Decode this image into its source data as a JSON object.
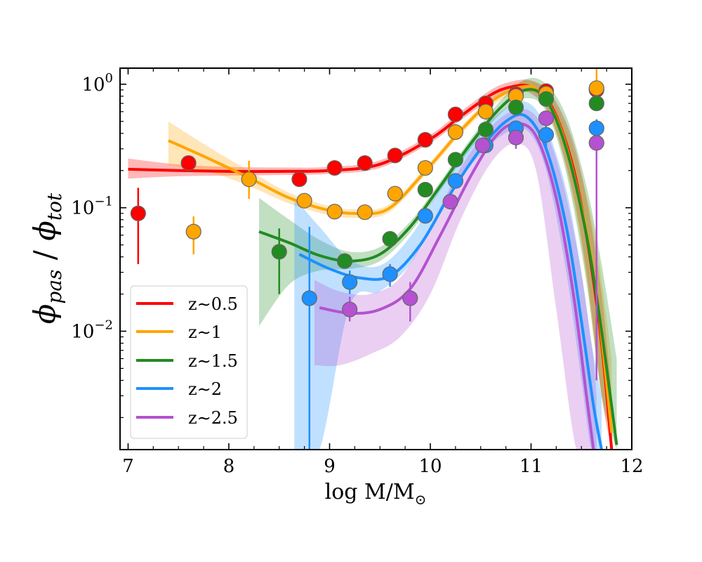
{
  "chart_data": {
    "type": "scatter",
    "title": "",
    "xlabel": "log M/M",
    "xlabel_sub": "⊙",
    "ylabel_main": "ϕ",
    "ylabel_sub1": "pas",
    "ylabel_slash": " / ",
    "ylabel_main2": "ϕ",
    "ylabel_sub2": "tot",
    "xlim": [
      6.92,
      12.0
    ],
    "ylim": [
      0.0011,
      1.35
    ],
    "yscale": "log",
    "x_ticks": [
      {
        "value": 7,
        "label": "7"
      },
      {
        "value": 8,
        "label": "8"
      },
      {
        "value": 9,
        "label": "9"
      },
      {
        "value": 10,
        "label": "10"
      },
      {
        "value": 11,
        "label": "11"
      },
      {
        "value": 12,
        "label": "12"
      }
    ],
    "y_ticks": [
      {
        "value": 1,
        "base": "10",
        "exp": "0"
      },
      {
        "value": 0.1,
        "base": "10",
        "exp": "−1"
      },
      {
        "value": 0.01,
        "base": "10",
        "exp": "−2"
      }
    ],
    "legend_position": "lower-left",
    "series": [
      {
        "name": "z~0.5",
        "label": "z∼0.5",
        "color": "#ff0000",
        "points": [
          {
            "x": 7.1,
            "y": 0.09,
            "lo": 0.035,
            "hi": 0.145
          },
          {
            "x": 7.6,
            "y": 0.23
          },
          {
            "x": 8.7,
            "y": 0.17
          },
          {
            "x": 9.05,
            "y": 0.21
          },
          {
            "x": 9.35,
            "y": 0.23
          },
          {
            "x": 9.65,
            "y": 0.265
          },
          {
            "x": 9.95,
            "y": 0.355
          },
          {
            "x": 10.25,
            "y": 0.57
          },
          {
            "x": 10.55,
            "y": 0.7
          },
          {
            "x": 10.85,
            "y": 0.83
          },
          {
            "x": 11.15,
            "y": 0.88
          },
          {
            "x": 11.65,
            "y": 0.9,
            "lo": 0.78,
            "hi": 1.0
          }
        ],
        "fit": {
          "x": [
            7.0,
            7.5,
            8.0,
            8.5,
            9.0,
            9.5,
            10.0,
            10.3,
            10.6,
            10.8,
            11.0,
            11.2,
            11.4,
            11.55,
            11.7,
            11.8
          ],
          "y": [
            0.205,
            0.2,
            0.197,
            0.197,
            0.2,
            0.225,
            0.36,
            0.55,
            0.82,
            0.95,
            0.95,
            0.67,
            0.24,
            0.06,
            0.008,
            0.0011
          ]
        },
        "band": {
          "x": [
            7.0,
            7.5,
            8.0,
            8.5,
            9.0,
            9.5,
            10.0,
            10.3,
            10.6,
            10.8,
            11.0,
            11.2,
            11.4,
            11.55,
            11.7,
            11.8
          ],
          "lo": [
            0.172,
            0.18,
            0.182,
            0.184,
            0.188,
            0.21,
            0.335,
            0.51,
            0.75,
            0.86,
            0.84,
            0.53,
            0.15,
            0.03,
            0.003,
            0.0011
          ],
          "hi": [
            0.25,
            0.224,
            0.214,
            0.212,
            0.214,
            0.242,
            0.39,
            0.6,
            0.9,
            1.05,
            1.07,
            0.83,
            0.38,
            0.12,
            0.02,
            0.003
          ]
        }
      },
      {
        "name": "z~1",
        "label": "z∼1",
        "color": "#ffa500",
        "points": [
          {
            "x": 7.65,
            "y": 0.064,
            "lo": 0.042,
            "hi": 0.085
          },
          {
            "x": 8.2,
            "y": 0.17,
            "lo": 0.118,
            "hi": 0.24
          },
          {
            "x": 8.75,
            "y": 0.114
          },
          {
            "x": 9.05,
            "y": 0.093
          },
          {
            "x": 9.35,
            "y": 0.092
          },
          {
            "x": 9.65,
            "y": 0.13
          },
          {
            "x": 9.95,
            "y": 0.21
          },
          {
            "x": 10.25,
            "y": 0.41
          },
          {
            "x": 10.55,
            "y": 0.6
          },
          {
            "x": 10.85,
            "y": 0.8
          },
          {
            "x": 11.15,
            "y": 0.84
          },
          {
            "x": 11.65,
            "y": 0.93,
            "lo": 0.8,
            "hi": 1.35
          }
        ],
        "fit": {
          "x": [
            7.4,
            7.8,
            8.2,
            8.6,
            9.0,
            9.3,
            9.6,
            10.0,
            10.3,
            10.6,
            10.9,
            11.1,
            11.3,
            11.5,
            11.65,
            11.8
          ],
          "y": [
            0.35,
            0.25,
            0.175,
            0.12,
            0.095,
            0.09,
            0.1,
            0.22,
            0.42,
            0.72,
            0.95,
            0.85,
            0.42,
            0.1,
            0.02,
            0.0015
          ]
        },
        "band": {
          "x": [
            7.4,
            7.8,
            8.2,
            8.6,
            9.0,
            9.3,
            9.6,
            10.0,
            10.3,
            10.6,
            10.9,
            11.1,
            11.3,
            11.5,
            11.65,
            11.8
          ],
          "lo": [
            0.22,
            0.195,
            0.15,
            0.108,
            0.087,
            0.083,
            0.093,
            0.205,
            0.39,
            0.66,
            0.86,
            0.74,
            0.3,
            0.05,
            0.006,
            0.0011
          ],
          "hi": [
            0.5,
            0.31,
            0.2,
            0.132,
            0.103,
            0.097,
            0.108,
            0.235,
            0.45,
            0.78,
            1.05,
            0.97,
            0.55,
            0.18,
            0.05,
            0.006
          ]
        }
      },
      {
        "name": "z~1.5",
        "label": "z∼1.5",
        "color": "#228b22",
        "points": [
          {
            "x": 8.5,
            "y": 0.044,
            "lo": 0.02,
            "hi": 0.068
          },
          {
            "x": 9.15,
            "y": 0.037
          },
          {
            "x": 9.6,
            "y": 0.056
          },
          {
            "x": 9.95,
            "y": 0.14
          },
          {
            "x": 10.25,
            "y": 0.245
          },
          {
            "x": 10.55,
            "y": 0.43
          },
          {
            "x": 10.85,
            "y": 0.65
          },
          {
            "x": 11.15,
            "y": 0.76
          },
          {
            "x": 11.65,
            "y": 0.7
          }
        ],
        "fit": {
          "x": [
            8.3,
            8.6,
            8.9,
            9.2,
            9.5,
            9.8,
            10.1,
            10.4,
            10.7,
            10.95,
            11.15,
            11.35,
            11.55,
            11.7,
            11.85
          ],
          "y": [
            0.064,
            0.052,
            0.041,
            0.037,
            0.042,
            0.07,
            0.15,
            0.33,
            0.65,
            0.9,
            0.75,
            0.3,
            0.06,
            0.01,
            0.0012
          ]
        },
        "band": {
          "x": [
            8.3,
            8.6,
            8.9,
            9.2,
            9.5,
            9.8,
            10.1,
            10.4,
            10.7,
            10.95,
            11.15,
            11.35,
            11.55,
            11.7,
            11.85
          ],
          "lo": [
            0.011,
            0.024,
            0.031,
            0.032,
            0.037,
            0.063,
            0.138,
            0.3,
            0.58,
            0.77,
            0.6,
            0.19,
            0.025,
            0.003,
            0.0011
          ],
          "hi": [
            0.12,
            0.08,
            0.055,
            0.044,
            0.048,
            0.077,
            0.163,
            0.36,
            0.74,
            1.1,
            1.0,
            0.55,
            0.15,
            0.035,
            0.006
          ]
        }
      },
      {
        "name": "z~2",
        "label": "z∼2",
        "color": "#1e90ff",
        "points": [
          {
            "x": 8.8,
            "y": 0.0185,
            "lo": 0.0011,
            "hi": 0.07
          },
          {
            "x": 9.2,
            "y": 0.025,
            "lo": 0.02,
            "hi": 0.031
          },
          {
            "x": 9.6,
            "y": 0.029,
            "lo": 0.023,
            "hi": 0.035
          },
          {
            "x": 9.95,
            "y": 0.086
          },
          {
            "x": 10.25,
            "y": 0.165
          },
          {
            "x": 10.55,
            "y": 0.32
          },
          {
            "x": 10.85,
            "y": 0.44
          },
          {
            "x": 11.15,
            "y": 0.39,
            "lo": 0.31,
            "hi": 0.46
          },
          {
            "x": 11.65,
            "y": 0.44,
            "lo": 0.35,
            "hi": 0.52
          }
        ],
        "fit": {
          "x": [
            8.7,
            9.0,
            9.3,
            9.6,
            9.9,
            10.2,
            10.5,
            10.75,
            10.95,
            11.15,
            11.35,
            11.5,
            11.62,
            11.7
          ],
          "y": [
            0.042,
            0.032,
            0.027,
            0.028,
            0.05,
            0.13,
            0.3,
            0.5,
            0.55,
            0.3,
            0.07,
            0.012,
            0.0025,
            0.0011
          ]
        },
        "band": {
          "x": [
            8.65,
            8.9,
            9.2,
            9.5,
            9.8,
            10.1,
            10.4,
            10.7,
            10.95,
            11.15,
            11.35,
            11.5,
            11.6,
            11.7
          ],
          "lo": [
            0.0011,
            0.0011,
            0.016,
            0.021,
            0.035,
            0.095,
            0.22,
            0.38,
            0.43,
            0.2,
            0.03,
            0.004,
            0.0011,
            0.0011
          ],
          "hi": [
            0.12,
            0.07,
            0.038,
            0.034,
            0.058,
            0.145,
            0.33,
            0.6,
            0.72,
            0.45,
            0.14,
            0.03,
            0.008,
            0.003
          ]
        }
      },
      {
        "name": "z~2.5",
        "label": "z∼2.5",
        "color": "#b452d1",
        "points": [
          {
            "x": 9.2,
            "y": 0.015,
            "lo": 0.012,
            "hi": 0.019
          },
          {
            "x": 9.8,
            "y": 0.0185,
            "lo": 0.012,
            "hi": 0.025
          },
          {
            "x": 10.2,
            "y": 0.112
          },
          {
            "x": 10.52,
            "y": 0.32
          },
          {
            "x": 10.85,
            "y": 0.37,
            "lo": 0.3,
            "hi": 0.44
          },
          {
            "x": 11.15,
            "y": 0.53
          },
          {
            "x": 11.65,
            "y": 0.335,
            "lo": 0.004,
            "hi": 0.42
          }
        ],
        "fit": {
          "x": [
            8.9,
            9.2,
            9.5,
            9.8,
            10.1,
            10.4,
            10.65,
            10.85,
            11.05,
            11.25,
            11.42,
            11.55,
            11.62
          ],
          "y": [
            0.0155,
            0.014,
            0.015,
            0.022,
            0.06,
            0.18,
            0.38,
            0.48,
            0.38,
            0.12,
            0.02,
            0.003,
            0.0011
          ]
        },
        "band": {
          "x": [
            8.85,
            9.1,
            9.4,
            9.7,
            10.0,
            10.3,
            10.6,
            10.85,
            11.05,
            11.25,
            11.45,
            11.6,
            11.65
          ],
          "lo": [
            0.0053,
            0.0053,
            0.0065,
            0.009,
            0.02,
            0.08,
            0.23,
            0.33,
            0.2,
            0.015,
            0.0011,
            0.0011,
            0.0011
          ],
          "hi": [
            0.026,
            0.021,
            0.02,
            0.027,
            0.07,
            0.21,
            0.45,
            0.62,
            0.55,
            0.25,
            0.05,
            0.008,
            0.003
          ]
        }
      }
    ]
  }
}
